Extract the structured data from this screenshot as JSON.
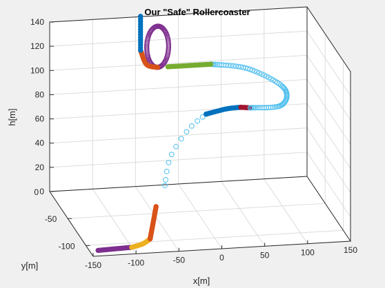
{
  "chart_data": {
    "type": "scatter3d",
    "title": "Our \"Safe\" Rollercoaster",
    "xlabel": "x[m]",
    "ylabel": "y[m]",
    "zlabel": "h[m]",
    "xlim": [
      -150,
      150
    ],
    "ylim": [
      -120,
      0
    ],
    "zlim": [
      0,
      140
    ],
    "xticks": [
      -150,
      -100,
      -50,
      0,
      50,
      100,
      150
    ],
    "yticks": [
      -100,
      -50,
      0
    ],
    "zticks": [
      0,
      20,
      40,
      60,
      80,
      100,
      120,
      140
    ],
    "grid": true,
    "view": {
      "azimuth_deg": -15,
      "elevation_deg": 20
    },
    "series": [
      {
        "color": "#7e2f8e",
        "segment": "straight",
        "from": [
          -140,
          -110,
          0
        ],
        "to": [
          -100,
          -108,
          0
        ],
        "count": 28,
        "marker": "filled"
      },
      {
        "color": "#edb120",
        "segment": "curve",
        "points": [
          [
            -100,
            -108,
            0
          ],
          [
            -85,
            -103,
            0
          ],
          [
            -73,
            -95,
            0
          ]
        ],
        "count": 22,
        "marker": "filled"
      },
      {
        "color": "#d95319",
        "segment": "straight",
        "from": [
          -73,
          -95,
          0
        ],
        "to": [
          -42,
          -38,
          0
        ],
        "count": 30,
        "marker": "filled"
      },
      {
        "color": "#4dbeee",
        "segment": "climb",
        "points": [
          [
            -20,
            -10,
            4
          ],
          [
            -5,
            10,
            18
          ],
          [
            20,
            20,
            35
          ],
          [
            40,
            18,
            48
          ]
        ],
        "count": 12,
        "marker": "open"
      },
      {
        "color": "#0072bd",
        "segment": "climb",
        "points": [
          [
            40,
            18,
            48
          ],
          [
            60,
            10,
            55
          ],
          [
            75,
            5,
            58
          ]
        ],
        "count": 26,
        "marker": "filled"
      },
      {
        "color": "#a2142f",
        "segment": "straight",
        "from": [
          75,
          5,
          58
        ],
        "to": [
          85,
          3,
          58
        ],
        "count": 10,
        "marker": "filled"
      },
      {
        "color": "#4dbeee",
        "segment": "curve",
        "points": [
          [
            85,
            3,
            58
          ],
          [
            120,
            0,
            60
          ],
          [
            125,
            5,
            72
          ],
          [
            85,
            8,
            88
          ],
          [
            40,
            5,
            95
          ]
        ],
        "count": 70,
        "marker": "open"
      },
      {
        "color": "#77ac30",
        "segment": "straight",
        "from": [
          40,
          5,
          95
        ],
        "to": [
          -10,
          5,
          95
        ],
        "count": 26,
        "marker": "filled"
      },
      {
        "color": "#7e2f8e",
        "segment": "loop",
        "center": [
          -22,
          5,
          112
        ],
        "radius": 17,
        "count": 90,
        "marker": "open-dense"
      },
      {
        "color": "#d95319",
        "segment": "curve",
        "points": [
          [
            -22,
            5,
            95
          ],
          [
            -35,
            5,
            98
          ],
          [
            -42,
            5,
            110
          ]
        ],
        "count": 22,
        "marker": "filled"
      },
      {
        "color": "#0072bd",
        "segment": "straight",
        "from": [
          -42,
          5,
          110
        ],
        "to": [
          -42,
          5,
          138
        ],
        "count": 14,
        "marker": "filled"
      }
    ]
  }
}
